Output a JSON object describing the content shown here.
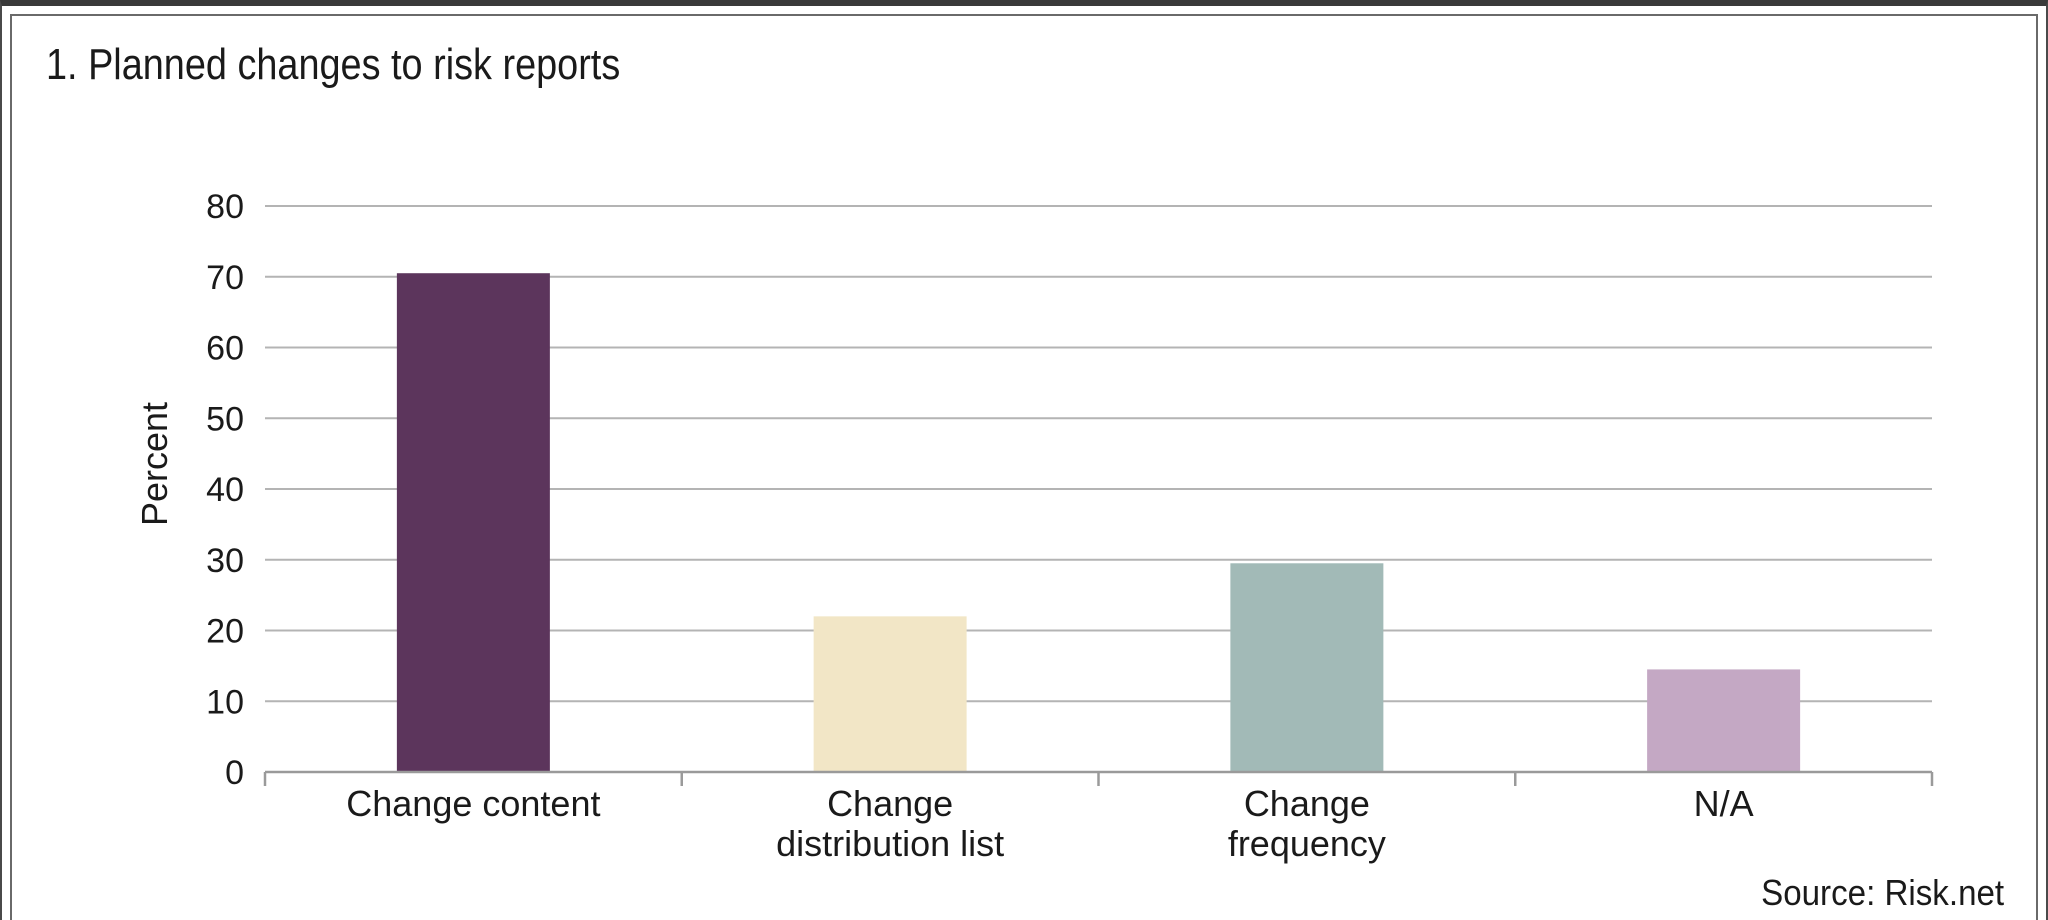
{
  "chart_data": {
    "type": "bar",
    "title": "1. Planned changes to risk reports",
    "categories": [
      [
        "Change content"
      ],
      [
        "Change",
        "distribution list"
      ],
      [
        "Change",
        "frequency"
      ],
      [
        "N/A"
      ]
    ],
    "values": [
      70.5,
      22,
      29.5,
      14.5
    ],
    "colors": [
      "#5c355c",
      "#f2e6c6",
      "#a2bab7",
      "#c4a8c4"
    ],
    "ylabel": "Percent",
    "xlabel": "",
    "ylim": [
      0,
      80
    ],
    "yticks": [
      0,
      10,
      20,
      30,
      40,
      50,
      60,
      70,
      80
    ],
    "grid": true,
    "source": "Source: Risk.net"
  }
}
